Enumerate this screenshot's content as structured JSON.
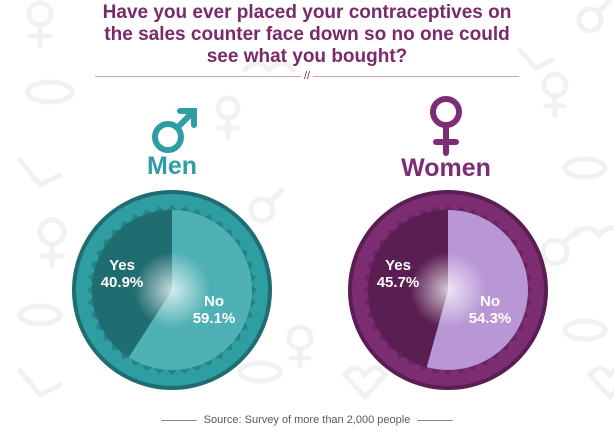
{
  "title_lines": [
    "Have you ever placed your contraceptives on",
    "the sales counter face down so no one could",
    "see what you bought?"
  ],
  "divider_mark": "//",
  "colors": {
    "title": "#7a2a6a",
    "men": "#2e9ea2",
    "men_dark": "#1f6d70",
    "men_light": "#4fb1b5",
    "women": "#7d2e73",
    "women_dark": "#5a1e52",
    "women_light": "#b996d6",
    "background_pattern": "#f1f1f1"
  },
  "chart_data": [
    {
      "type": "pie",
      "group": "Men",
      "icon": "male-symbol-icon",
      "slices": [
        {
          "label": "Yes",
          "value": 40.9,
          "display": "40.9%"
        },
        {
          "label": "No",
          "value": 59.1,
          "display": "59.1%"
        }
      ]
    },
    {
      "type": "pie",
      "group": "Women",
      "icon": "female-symbol-icon",
      "slices": [
        {
          "label": "Yes",
          "value": 45.7,
          "display": "45.7%"
        },
        {
          "label": "No",
          "value": 54.3,
          "display": "54.3%"
        }
      ]
    }
  ],
  "source": "Source: Survey of more than 2,000 people"
}
